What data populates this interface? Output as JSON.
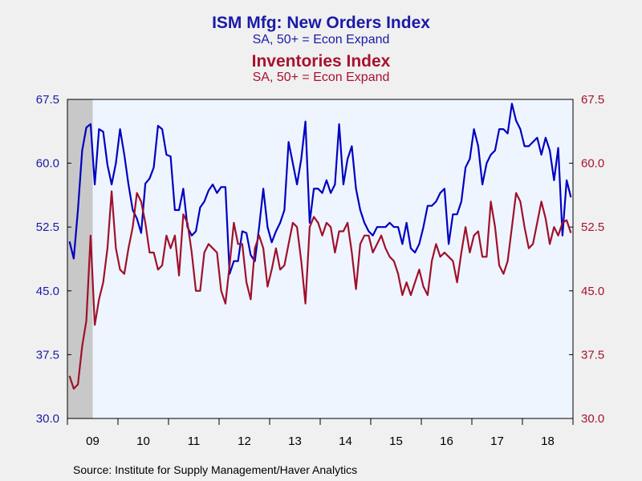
{
  "chart_data": {
    "type": "line",
    "titles": [
      {
        "text": "ISM Mfg: New Orders Index",
        "subtitle": "SA, 50+ = Econ Expand",
        "color": "#1a1aa8"
      },
      {
        "text": "Inventories Index",
        "subtitle": "SA, 50+ = Econ Expand",
        "color": "#a8122e"
      }
    ],
    "ylim": [
      30.0,
      67.5
    ],
    "yticks": [
      "67.5",
      "60.0",
      "52.5",
      "45.0",
      "37.5",
      "30.0"
    ],
    "ytick_values": [
      67.5,
      60.0,
      52.5,
      45.0,
      37.5,
      30.0
    ],
    "x_start": "2009-01",
    "x_end": "2018-12",
    "x_labels": [
      "09",
      "10",
      "11",
      "12",
      "13",
      "14",
      "15",
      "16",
      "17",
      "18"
    ],
    "recession_shading": {
      "start": "2009-01",
      "end": "2009-06"
    },
    "series": [
      {
        "name": "ISM Mfg: New Orders Index",
        "color": "#0000c0",
        "values": [
          50.8,
          48.8,
          54.5,
          61.5,
          64.2,
          64.6,
          57.5,
          64.0,
          63.7,
          59.8,
          57.5,
          60.0,
          64.0,
          61.0,
          57.5,
          54.5,
          53.5,
          51.8,
          57.6,
          58.2,
          59.5,
          64.4,
          64.0,
          61.0,
          60.8,
          54.5,
          54.5,
          57.0,
          52.5,
          51.5,
          52.0,
          54.8,
          55.5,
          56.8,
          57.5,
          56.5,
          57.2,
          57.2,
          47.0,
          48.5,
          48.5,
          52.0,
          51.8,
          49.2,
          48.5,
          52.5,
          57.0,
          52.5,
          50.7,
          52.0,
          53.0,
          54.5,
          62.5,
          60.0,
          57.5,
          60.5,
          64.9,
          53.0,
          57.0,
          57.0,
          56.5,
          58.0,
          56.5,
          57.5,
          64.6,
          57.5,
          60.5,
          62.0,
          57.0,
          54.5,
          53.0,
          52.0,
          51.5,
          52.5,
          52.5,
          52.5,
          53.0,
          52.5,
          52.5,
          50.5,
          53.0,
          50.0,
          49.5,
          50.5,
          52.5,
          55.0,
          55.0,
          55.5,
          56.5,
          57.0,
          50.5,
          54.0,
          54.0,
          55.5,
          59.5,
          60.5,
          64.0,
          62.0,
          57.5,
          60.0,
          61.0,
          61.5,
          64.0,
          64.0,
          63.5,
          67.0,
          65.0,
          64.0,
          62.0,
          62.0,
          62.5,
          63.0,
          61.0,
          63.0,
          61.5,
          58.0,
          61.8,
          51.5,
          58.0,
          56.0
        ]
      },
      {
        "name": "Inventories Index",
        "color": "#a0102a",
        "values": [
          35.0,
          33.5,
          34.0,
          38.5,
          41.5,
          51.5,
          41.0,
          44.0,
          46.0,
          50.0,
          56.7,
          50.0,
          47.5,
          47.0,
          50.0,
          52.5,
          56.5,
          55.5,
          53.0,
          49.5,
          49.5,
          47.5,
          48.0,
          51.5,
          50.0,
          51.5,
          46.8,
          54.0,
          53.0,
          49.5,
          45.0,
          45.0,
          49.5,
          50.5,
          50.0,
          49.5,
          45.0,
          43.5,
          48.0,
          53.0,
          50.5,
          50.5,
          46.0,
          44.0,
          50.0,
          51.5,
          50.0,
          45.5,
          47.5,
          50.0,
          47.5,
          48.0,
          50.5,
          53.0,
          52.5,
          48.5,
          43.5,
          52.5,
          53.7,
          53.0,
          51.5,
          53.0,
          52.5,
          49.5,
          52.0,
          52.0,
          53.0,
          49.5,
          45.2,
          50.5,
          51.5,
          51.5,
          49.5,
          50.5,
          51.5,
          50.0,
          49.0,
          48.5,
          47.0,
          44.5,
          46.0,
          44.5,
          46.0,
          47.5,
          45.5,
          44.5,
          48.5,
          50.5,
          49.0,
          49.5,
          49.0,
          48.5,
          46.0,
          49.5,
          52.5,
          49.5,
          51.5,
          52.0,
          49.0,
          49.0,
          55.5,
          52.5,
          48.0,
          47.0,
          48.5,
          52.5,
          56.5,
          55.5,
          52.5,
          50.0,
          50.5,
          53.0,
          55.5,
          53.5,
          50.5,
          52.5,
          51.5,
          53.0,
          53.3,
          51.8
        ]
      }
    ],
    "source": "Source:  Institute for Supply Management/Haver Analytics"
  }
}
